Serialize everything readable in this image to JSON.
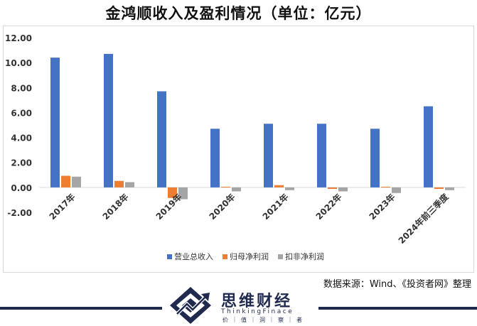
{
  "title": "金鸿顺收入及盈利情况（单位：亿元）",
  "source_note": "数据来源：Wind、《投资者网》整理",
  "brand": {
    "name": "思维财经",
    "english": "ThinkingFinace",
    "motto": "价｜值｜洞｜察｜者"
  },
  "colors": {
    "series": [
      "#4472C4",
      "#ED7D31",
      "#A5A5A5"
    ],
    "footer": "#1f2a4e"
  },
  "chart_data": {
    "type": "bar",
    "categories": [
      "2017年",
      "2018年",
      "2019年",
      "2020年",
      "2021年",
      "2022年",
      "2023年",
      "2024年前三季度"
    ],
    "series": [
      {
        "name": "营业总收入",
        "values": [
          10.4,
          10.7,
          7.7,
          4.7,
          5.1,
          5.1,
          4.7,
          6.5
        ]
      },
      {
        "name": "归母净利润",
        "values": [
          0.93,
          0.52,
          -0.85,
          0.05,
          0.18,
          -0.12,
          0.05,
          -0.12
        ]
      },
      {
        "name": "扣非净利润",
        "values": [
          0.86,
          0.42,
          -0.95,
          -0.32,
          -0.22,
          -0.32,
          -0.45,
          -0.22
        ]
      }
    ],
    "yticks": [
      "12.00",
      "10.00",
      "8.00",
      "6.00",
      "4.00",
      "2.00",
      "0.00",
      "-2.00"
    ],
    "ylim": [
      -2,
      12
    ],
    "legend_position": "bottom",
    "grid": false
  }
}
